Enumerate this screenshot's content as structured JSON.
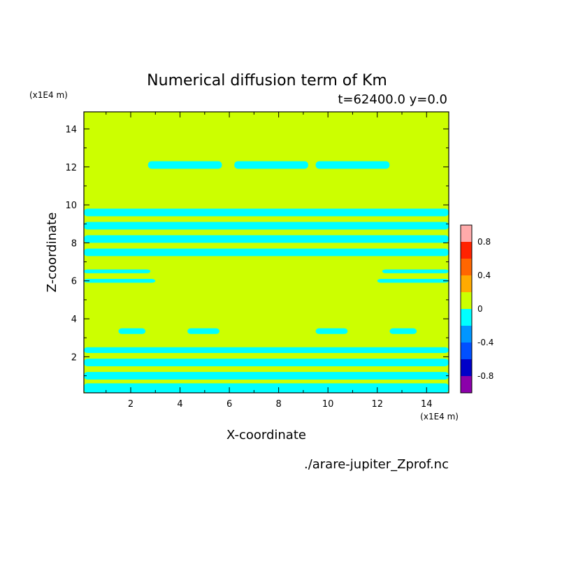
{
  "chart_data": {
    "type": "heatmap",
    "title": "Numerical diffusion term of Km",
    "subtitle": "t=62400.0 y=0.0",
    "xlabel": "X-coordinate",
    "ylabel": "Z-coordinate",
    "x_unit": "(x1E4 m)",
    "z_unit": "(x1E4 m)",
    "source_file": "./arare-jupiter_Zprof.nc",
    "xlim": [
      0.1,
      14.9
    ],
    "ylim": [
      0.1,
      14.9
    ],
    "x_ticks": [
      2,
      4,
      6,
      8,
      10,
      12,
      14
    ],
    "y_ticks": [
      2,
      4,
      6,
      8,
      10,
      12,
      14
    ],
    "colorbar": {
      "range": [
        -1.0,
        1.0
      ],
      "step": 0.2,
      "tick_values": [
        -0.8,
        -0.4,
        0,
        0.4,
        0.8
      ],
      "tick_labels": [
        "-0.8",
        "-0.4",
        "0",
        "0.4",
        "0.8"
      ],
      "colors": [
        "#8b00aa",
        "#0000c8",
        "#0050ff",
        "#0096ff",
        "#00ffff",
        "#ccff00",
        "#ffaa00",
        "#ff6600",
        "#ff2200",
        "#ffaaaa"
      ]
    },
    "background_color": "#ccff00",
    "negative_color": "#00ffff",
    "bands": [
      {
        "z": [
          11.9,
          12.3
        ],
        "x": [
          2.7,
          5.7
        ],
        "level": -0.1
      },
      {
        "z": [
          11.9,
          12.3
        ],
        "x": [
          6.2,
          9.2
        ],
        "level": -0.1
      },
      {
        "z": [
          11.9,
          12.3
        ],
        "x": [
          9.5,
          12.5
        ],
        "level": -0.1
      },
      {
        "z": [
          9.4,
          9.8
        ],
        "x": [
          0.1,
          14.9
        ],
        "level": -0.1
      },
      {
        "z": [
          8.7,
          9.1
        ],
        "x": [
          0.1,
          14.9
        ],
        "level": -0.1
      },
      {
        "z": [
          8.0,
          8.4
        ],
        "x": [
          0.1,
          14.9
        ],
        "level": -0.1
      },
      {
        "z": [
          7.3,
          7.7
        ],
        "x": [
          0.1,
          14.9
        ],
        "level": -0.1
      },
      {
        "z": [
          6.4,
          6.6
        ],
        "x": [
          0.1,
          2.8
        ],
        "level": -0.1
      },
      {
        "z": [
          5.9,
          6.1
        ],
        "x": [
          0.1,
          3.0
        ],
        "level": -0.1
      },
      {
        "z": [
          6.4,
          6.6
        ],
        "x": [
          12.2,
          14.9
        ],
        "level": -0.1
      },
      {
        "z": [
          5.9,
          6.1
        ],
        "x": [
          12.0,
          14.9
        ],
        "level": -0.1
      },
      {
        "z": [
          3.2,
          3.5
        ],
        "x": [
          1.5,
          2.6
        ],
        "level": -0.1
      },
      {
        "z": [
          3.2,
          3.5
        ],
        "x": [
          4.3,
          5.6
        ],
        "level": -0.1
      },
      {
        "z": [
          3.2,
          3.5
        ],
        "x": [
          9.5,
          10.8
        ],
        "level": -0.1
      },
      {
        "z": [
          3.2,
          3.5
        ],
        "x": [
          12.5,
          13.6
        ],
        "level": -0.1
      },
      {
        "z": [
          2.2,
          2.5
        ],
        "x": [
          0.1,
          14.9
        ],
        "level": -0.1
      },
      {
        "z": [
          1.5,
          1.9
        ],
        "x": [
          0.1,
          14.9
        ],
        "level": -0.1
      },
      {
        "z": [
          0.8,
          1.2
        ],
        "x": [
          0.1,
          14.9
        ],
        "level": -0.1
      },
      {
        "z": [
          0.1,
          0.6
        ],
        "x": [
          0.1,
          14.9
        ],
        "level": -0.1
      }
    ]
  }
}
